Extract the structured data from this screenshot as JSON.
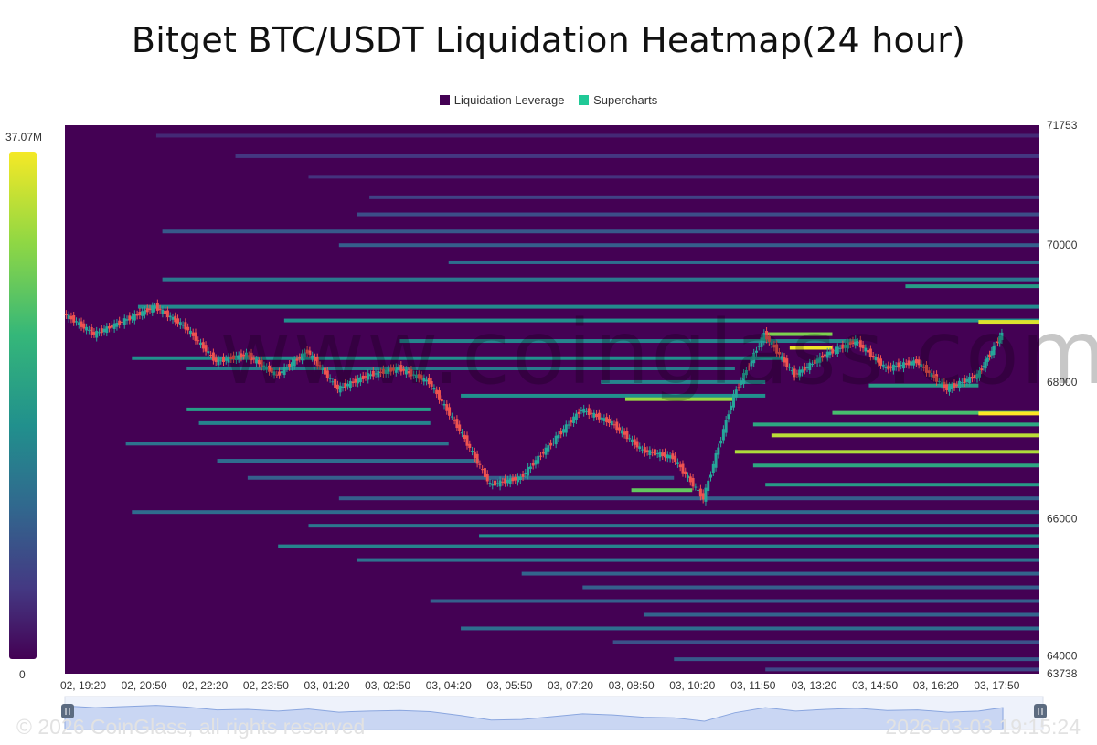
{
  "title": "Bitget BTC/USDT Liquidation Heatmap(24 hour)",
  "legend": [
    {
      "label": "Liquidation Leverage",
      "color": "#440154"
    },
    {
      "label": "Supercharts",
      "color": "#20c997"
    }
  ],
  "colorbar": {
    "max_label": "37.07M",
    "min_label": "0"
  },
  "watermark": "www.coinglass.com",
  "footer": {
    "copyright": "© 2026 CoinGlass, all rights reserved",
    "timestamp": "2026-03-03 19:15:24"
  },
  "chart_data": {
    "type": "heatmap",
    "title": "Bitget BTC/USDT Liquidation Heatmap(24 hour)",
    "colormap": [
      "#440154",
      "#443983",
      "#31688e",
      "#21908d",
      "#35b779",
      "#8fd744",
      "#fde725"
    ],
    "y_axis": {
      "min": 63738,
      "max": 71753,
      "ticks": [
        71753,
        70000,
        68000,
        66000,
        64000,
        63738
      ],
      "position": "right"
    },
    "x_axis": {
      "ticks": [
        "02, 19:20",
        "02, 20:50",
        "02, 22:20",
        "02, 23:50",
        "03, 01:20",
        "03, 02:50",
        "03, 04:20",
        "03, 05:50",
        "03, 07:20",
        "03, 08:50",
        "03, 10:20",
        "03, 11:50",
        "03, 13:20",
        "03, 14:50",
        "03, 16:20",
        "03, 17:50"
      ]
    },
    "price_series": {
      "name": "BTC price",
      "t": [
        0,
        0.5,
        1,
        1.5,
        2,
        2.5,
        3,
        3.5,
        4,
        4.5,
        5,
        5.5,
        6,
        6.5,
        7,
        7.5,
        8,
        8.5,
        9,
        9.5,
        10,
        10.5,
        11,
        11.5,
        12,
        12.5,
        13,
        13.5,
        14,
        14.5,
        15,
        15.4
      ],
      "price": [
        69000,
        68700,
        68900,
        69100,
        68800,
        68300,
        68400,
        68100,
        68450,
        67900,
        68100,
        68200,
        68000,
        67300,
        66500,
        66600,
        67100,
        67600,
        67400,
        67000,
        66900,
        66300,
        67800,
        68700,
        68100,
        68400,
        68600,
        68200,
        68300,
        67900,
        68100,
        68700
      ]
    },
    "bands": [
      {
        "price": 71600,
        "start": 1.5,
        "end": 16,
        "intensity": 0.12
      },
      {
        "price": 71300,
        "start": 2.8,
        "end": 16,
        "intensity": 0.16
      },
      {
        "price": 71000,
        "start": 4.0,
        "end": 16,
        "intensity": 0.15
      },
      {
        "price": 70700,
        "start": 5.0,
        "end": 16,
        "intensity": 0.2
      },
      {
        "price": 70450,
        "start": 4.8,
        "end": 16,
        "intensity": 0.24
      },
      {
        "price": 70200,
        "start": 1.6,
        "end": 16,
        "intensity": 0.28
      },
      {
        "price": 70000,
        "start": 4.5,
        "end": 16,
        "intensity": 0.3
      },
      {
        "price": 69750,
        "start": 6.3,
        "end": 16,
        "intensity": 0.36
      },
      {
        "price": 69500,
        "start": 1.6,
        "end": 16,
        "intensity": 0.4
      },
      {
        "price": 69400,
        "start": 13.8,
        "end": 16,
        "intensity": 0.55
      },
      {
        "price": 69100,
        "start": 1.2,
        "end": 16,
        "intensity": 0.48
      },
      {
        "price": 68900,
        "start": 3.6,
        "end": 16,
        "intensity": 0.5
      },
      {
        "price": 68880,
        "start": 15.0,
        "end": 16,
        "intensity": 0.95
      },
      {
        "price": 68700,
        "start": 11.5,
        "end": 12.6,
        "intensity": 0.8
      },
      {
        "price": 68600,
        "start": 5.5,
        "end": 13.0,
        "intensity": 0.45
      },
      {
        "price": 68500,
        "start": 11.9,
        "end": 12.6,
        "intensity": 0.98
      },
      {
        "price": 68350,
        "start": 1.1,
        "end": 11.8,
        "intensity": 0.5
      },
      {
        "price": 68200,
        "start": 2.0,
        "end": 11.0,
        "intensity": 0.42
      },
      {
        "price": 68000,
        "start": 8.8,
        "end": 11.5,
        "intensity": 0.45
      },
      {
        "price": 67950,
        "start": 13.2,
        "end": 15.0,
        "intensity": 0.55
      },
      {
        "price": 67800,
        "start": 6.5,
        "end": 11.5,
        "intensity": 0.5
      },
      {
        "price": 67750,
        "start": 9.2,
        "end": 11.0,
        "intensity": 0.85
      },
      {
        "price": 67600,
        "start": 2.0,
        "end": 6.0,
        "intensity": 0.55
      },
      {
        "price": 67550,
        "start": 12.6,
        "end": 16,
        "intensity": 0.7
      },
      {
        "price": 67540,
        "start": 15.0,
        "end": 16,
        "intensity": 1.0
      },
      {
        "price": 67400,
        "start": 2.2,
        "end": 6.0,
        "intensity": 0.45
      },
      {
        "price": 67380,
        "start": 11.3,
        "end": 16,
        "intensity": 0.6
      },
      {
        "price": 67220,
        "start": 11.6,
        "end": 16,
        "intensity": 0.9
      },
      {
        "price": 67100,
        "start": 1.0,
        "end": 6.3,
        "intensity": 0.38
      },
      {
        "price": 66980,
        "start": 11.0,
        "end": 16,
        "intensity": 0.88
      },
      {
        "price": 66850,
        "start": 2.5,
        "end": 6.8,
        "intensity": 0.35
      },
      {
        "price": 66780,
        "start": 11.3,
        "end": 16,
        "intensity": 0.6
      },
      {
        "price": 66600,
        "start": 3.0,
        "end": 10.0,
        "intensity": 0.3
      },
      {
        "price": 66500,
        "start": 11.5,
        "end": 16,
        "intensity": 0.55
      },
      {
        "price": 66420,
        "start": 9.3,
        "end": 10.3,
        "intensity": 0.75
      },
      {
        "price": 66300,
        "start": 4.5,
        "end": 16,
        "intensity": 0.3
      },
      {
        "price": 66100,
        "start": 1.1,
        "end": 16,
        "intensity": 0.35
      },
      {
        "price": 65900,
        "start": 4.0,
        "end": 16,
        "intensity": 0.4
      },
      {
        "price": 65750,
        "start": 6.8,
        "end": 16,
        "intensity": 0.5
      },
      {
        "price": 65600,
        "start": 3.5,
        "end": 16,
        "intensity": 0.45
      },
      {
        "price": 65400,
        "start": 4.8,
        "end": 16,
        "intensity": 0.38
      },
      {
        "price": 65200,
        "start": 7.5,
        "end": 16,
        "intensity": 0.32
      },
      {
        "price": 65000,
        "start": 8.5,
        "end": 16,
        "intensity": 0.3
      },
      {
        "price": 64800,
        "start": 6.0,
        "end": 16,
        "intensity": 0.3
      },
      {
        "price": 64600,
        "start": 9.5,
        "end": 16,
        "intensity": 0.32
      },
      {
        "price": 64400,
        "start": 6.5,
        "end": 16,
        "intensity": 0.36
      },
      {
        "price": 64200,
        "start": 9.0,
        "end": 16,
        "intensity": 0.25
      },
      {
        "price": 63950,
        "start": 10.0,
        "end": 16,
        "intensity": 0.28
      },
      {
        "price": 63800,
        "start": 11.5,
        "end": 16,
        "intensity": 0.22
      }
    ]
  }
}
